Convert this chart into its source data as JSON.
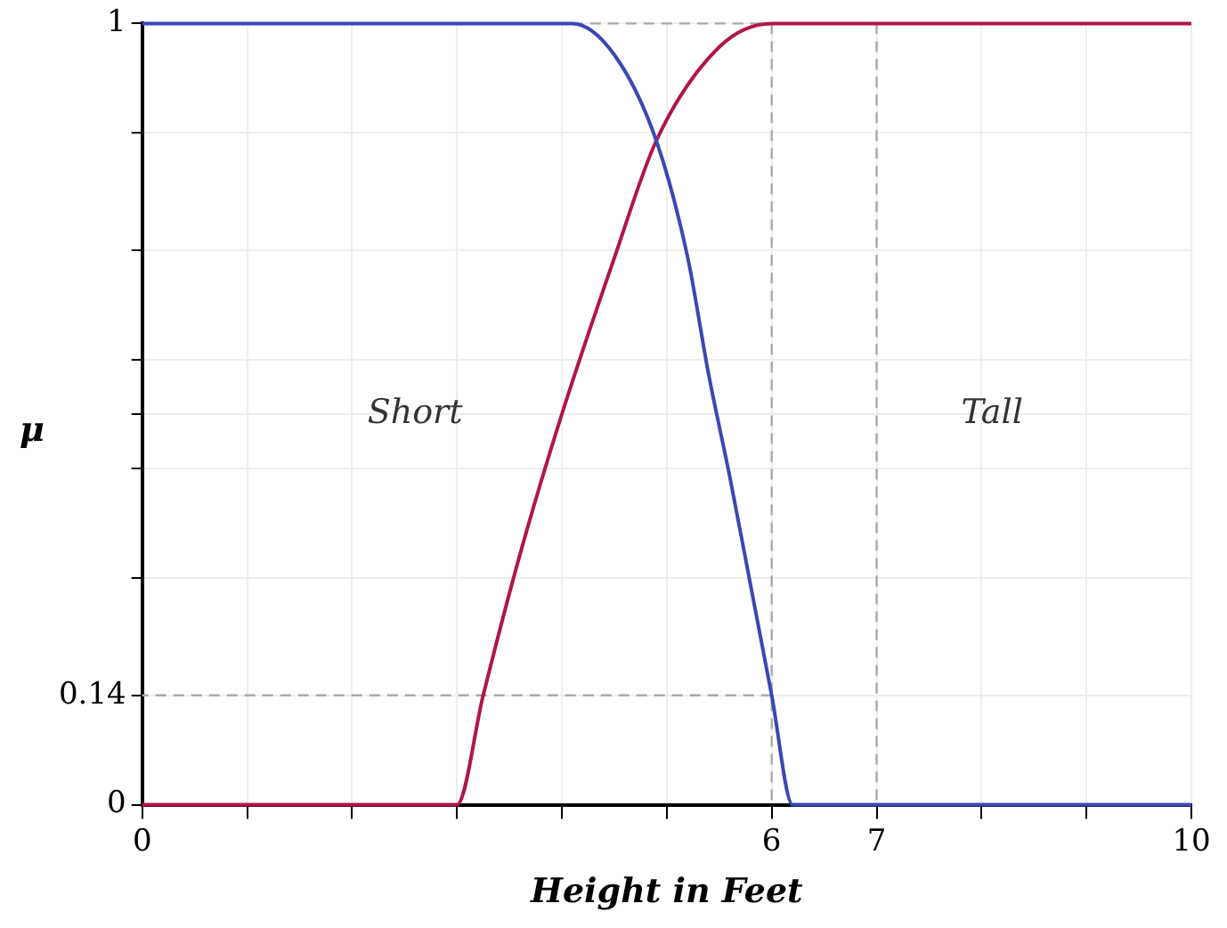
{
  "chart_data": {
    "type": "line",
    "xlabel": "Height in Feet",
    "ylabel": "μ",
    "xlim": [
      0,
      10
    ],
    "ylim": [
      0,
      1
    ],
    "xticks": [
      0,
      {
        "value": 1,
        "label": null
      },
      {
        "value": 2,
        "label": null
      },
      {
        "value": 3,
        "label": null
      },
      {
        "value": 4,
        "label": null
      },
      {
        "value": 5,
        "label": null
      },
      6,
      7,
      {
        "value": 8,
        "label": null
      },
      {
        "value": 9,
        "label": null
      },
      10
    ],
    "yticks": [
      0,
      0.14,
      {
        "value": 0.29,
        "label": null
      },
      {
        "value": 0.43,
        "label": null
      },
      {
        "value": 0.5,
        "label": null
      },
      {
        "value": 0.57,
        "label": null
      },
      {
        "value": 0.71,
        "label": null
      },
      {
        "value": 0.86,
        "label": null
      },
      1
    ],
    "grid": true,
    "legend": false,
    "marker": "none",
    "series": [
      {
        "color": "#3a47b5",
        "x": [
          0,
          4.1,
          4.5,
          4.9,
          5.2,
          5.4,
          5.6,
          5.8,
          6.0,
          6.2,
          10
        ],
        "values": [
          1,
          1,
          0.96,
          0.85,
          0.7,
          0.55,
          0.42,
          0.28,
          0.14,
          0,
          0
        ]
      },
      {
        "color": "#b0154a",
        "x": [
          0,
          3,
          3.25,
          3.6,
          4.0,
          4.5,
          4.9,
          5.5,
          6,
          10
        ],
        "values": [
          0,
          0,
          0.14,
          0.32,
          0.5,
          0.7,
          0.85,
          0.97,
          1,
          1
        ]
      },
      {
        "color": "#aaaaaa",
        "line_style": "dashed",
        "x": [
          4.1,
          6
        ],
        "values": [
          1,
          1
        ]
      },
      {
        "color": "#aaaaaa",
        "line_style": "dashed",
        "x": [
          6,
          6
        ],
        "values": [
          1,
          0
        ]
      },
      {
        "color": "#aaaaaa",
        "line_style": "dashed",
        "x": [
          7,
          7
        ],
        "values": [
          1,
          0
        ]
      },
      {
        "color": "#aaaaaa",
        "line_style": "dashed",
        "x": [
          6,
          0
        ],
        "values": [
          0.14,
          0.14
        ]
      }
    ],
    "annotations": [
      "Short",
      "Tall"
    ]
  }
}
